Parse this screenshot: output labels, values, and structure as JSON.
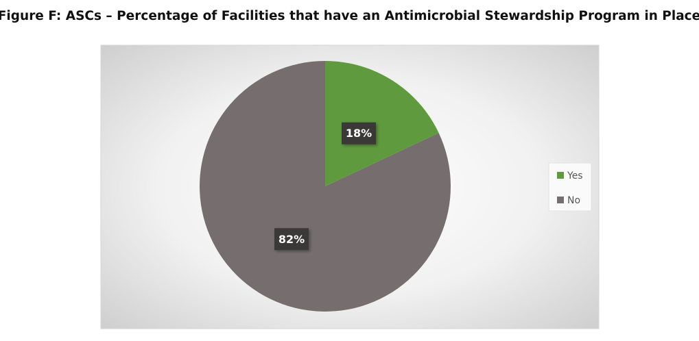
{
  "chart_data": {
    "type": "pie",
    "title": "Figure F: ASCs – Percentage of Facilities that have an Antimicrobial Stewardship Program in Place",
    "categories": [
      "Yes",
      "No"
    ],
    "values": [
      18,
      82
    ],
    "value_labels": [
      "18%",
      "82%"
    ],
    "colors": [
      "#5f9b3e",
      "#766e6e"
    ],
    "legend": "right"
  }
}
